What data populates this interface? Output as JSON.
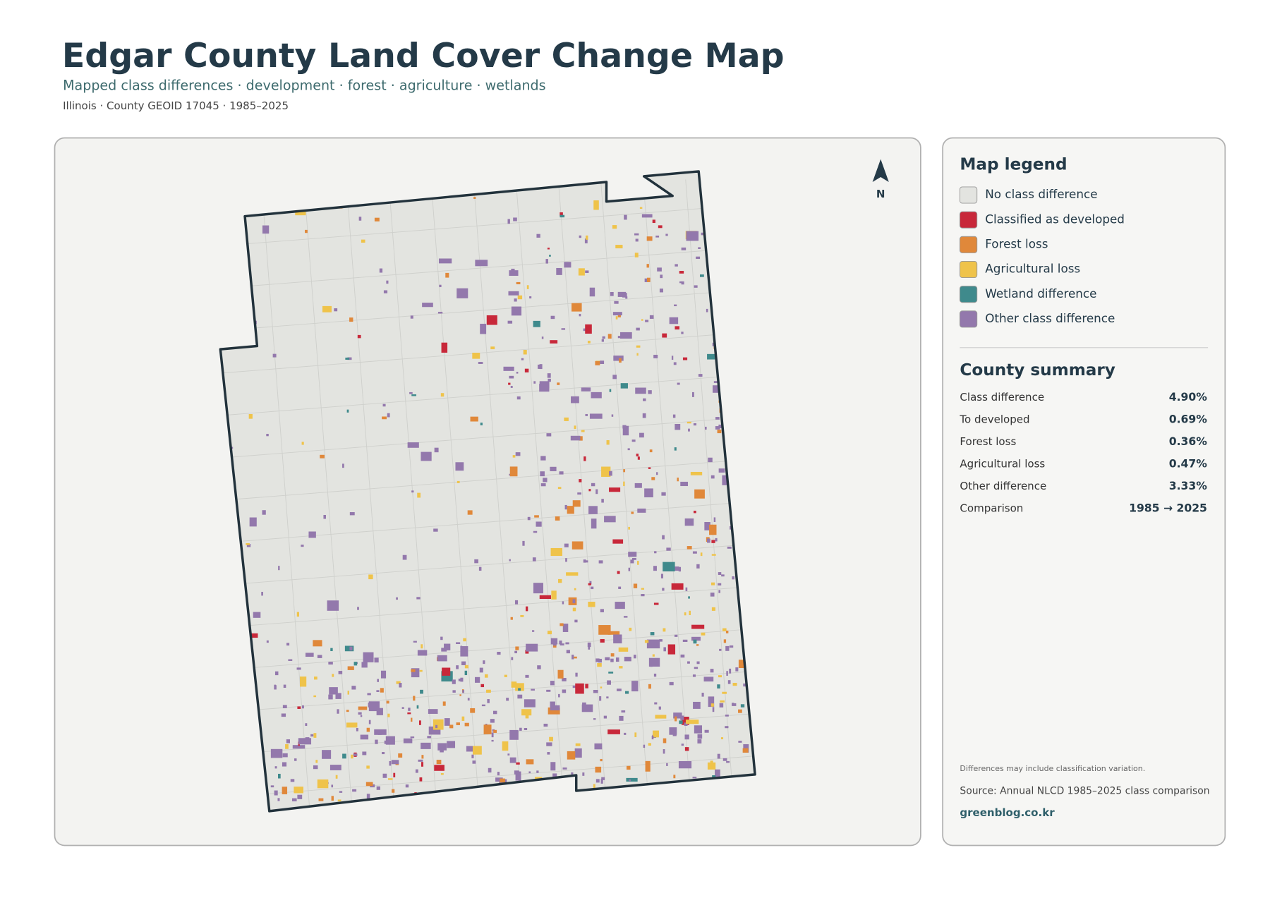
{
  "header": {
    "title": "Edgar County Land Cover Change Map",
    "subtitle": "Mapped class differences · development · forest · agriculture · wetlands",
    "meta": "Illinois · County GEOID 17045 · 1985–2025"
  },
  "map": {
    "north_label": "N"
  },
  "legend": {
    "title": "Map legend",
    "items": [
      {
        "label": "No class difference",
        "color": "#e3e4e0"
      },
      {
        "label": "Classified as developed",
        "color": "#c8283a"
      },
      {
        "label": "Forest loss",
        "color": "#e0883a"
      },
      {
        "label": "Agricultural loss",
        "color": "#efc34a"
      },
      {
        "label": "Wetland difference",
        "color": "#3f8a8c"
      },
      {
        "label": "Other class difference",
        "color": "#9378ac"
      }
    ]
  },
  "summary": {
    "title": "County summary",
    "rows": [
      {
        "label": "Class difference",
        "value": "4.90%"
      },
      {
        "label": "To developed",
        "value": "0.69%"
      },
      {
        "label": "Forest loss",
        "value": "0.36%"
      },
      {
        "label": "Agricultural loss",
        "value": "0.47%"
      },
      {
        "label": "Other difference",
        "value": "3.33%"
      },
      {
        "label": "Comparison",
        "value": "1985 → 2025"
      }
    ]
  },
  "footer": {
    "note": "Differences may include classification variation.",
    "source": "Source: Annual NLCD 1985–2025 class comparison",
    "link": "greenblog.co.kr"
  }
}
